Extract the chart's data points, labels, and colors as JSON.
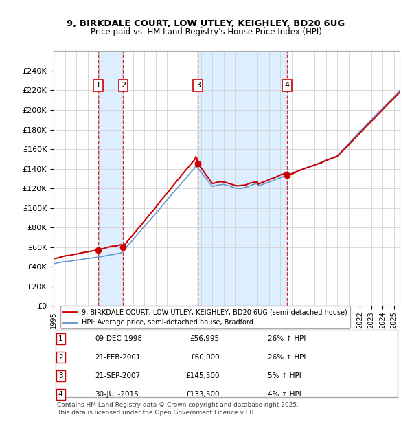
{
  "title_line1": "9, BIRKDALE COURT, LOW UTLEY, KEIGHLEY, BD20 6UG",
  "title_line2": "Price paid vs. HM Land Registry's House Price Index (HPI)",
  "legend_property": "9, BIRKDALE COURT, LOW UTLEY, KEIGHLEY, BD20 6UG (semi-detached house)",
  "legend_hpi": "HPI: Average price, semi-detached house, Bradford",
  "transactions": [
    {
      "num": 1,
      "date": "09-DEC-1998",
      "price": 56995,
      "hpi_pct": "26%",
      "direction": "↑"
    },
    {
      "num": 2,
      "date": "21-FEB-2001",
      "price": 60000,
      "hpi_pct": "26%",
      "direction": "↑"
    },
    {
      "num": 3,
      "date": "21-SEP-2007",
      "price": 145500,
      "hpi_pct": "5%",
      "direction": "↑"
    },
    {
      "num": 4,
      "date": "30-JUL-2015",
      "price": 133500,
      "hpi_pct": "4%",
      "direction": "↑"
    }
  ],
  "sale_years": [
    1998.94,
    2001.14,
    2007.72,
    2015.58
  ],
  "sale_prices": [
    56995,
    60000,
    145500,
    133500
  ],
  "property_color": "#cc0000",
  "hpi_color": "#6699cc",
  "shade_color": "#ddeeff",
  "dashed_color": "#cc0000",
  "ylim": [
    0,
    260000
  ],
  "yticks": [
    0,
    20000,
    40000,
    60000,
    80000,
    100000,
    120000,
    140000,
    160000,
    180000,
    200000,
    220000,
    240000
  ],
  "footnote": "Contains HM Land Registry data © Crown copyright and database right 2025.\nThis data is licensed under the Open Government Licence v3.0.",
  "background_color": "#ffffff",
  "grid_color": "#cccccc",
  "label_box_color": "#ffffff",
  "label_box_edge": "#cc0000"
}
